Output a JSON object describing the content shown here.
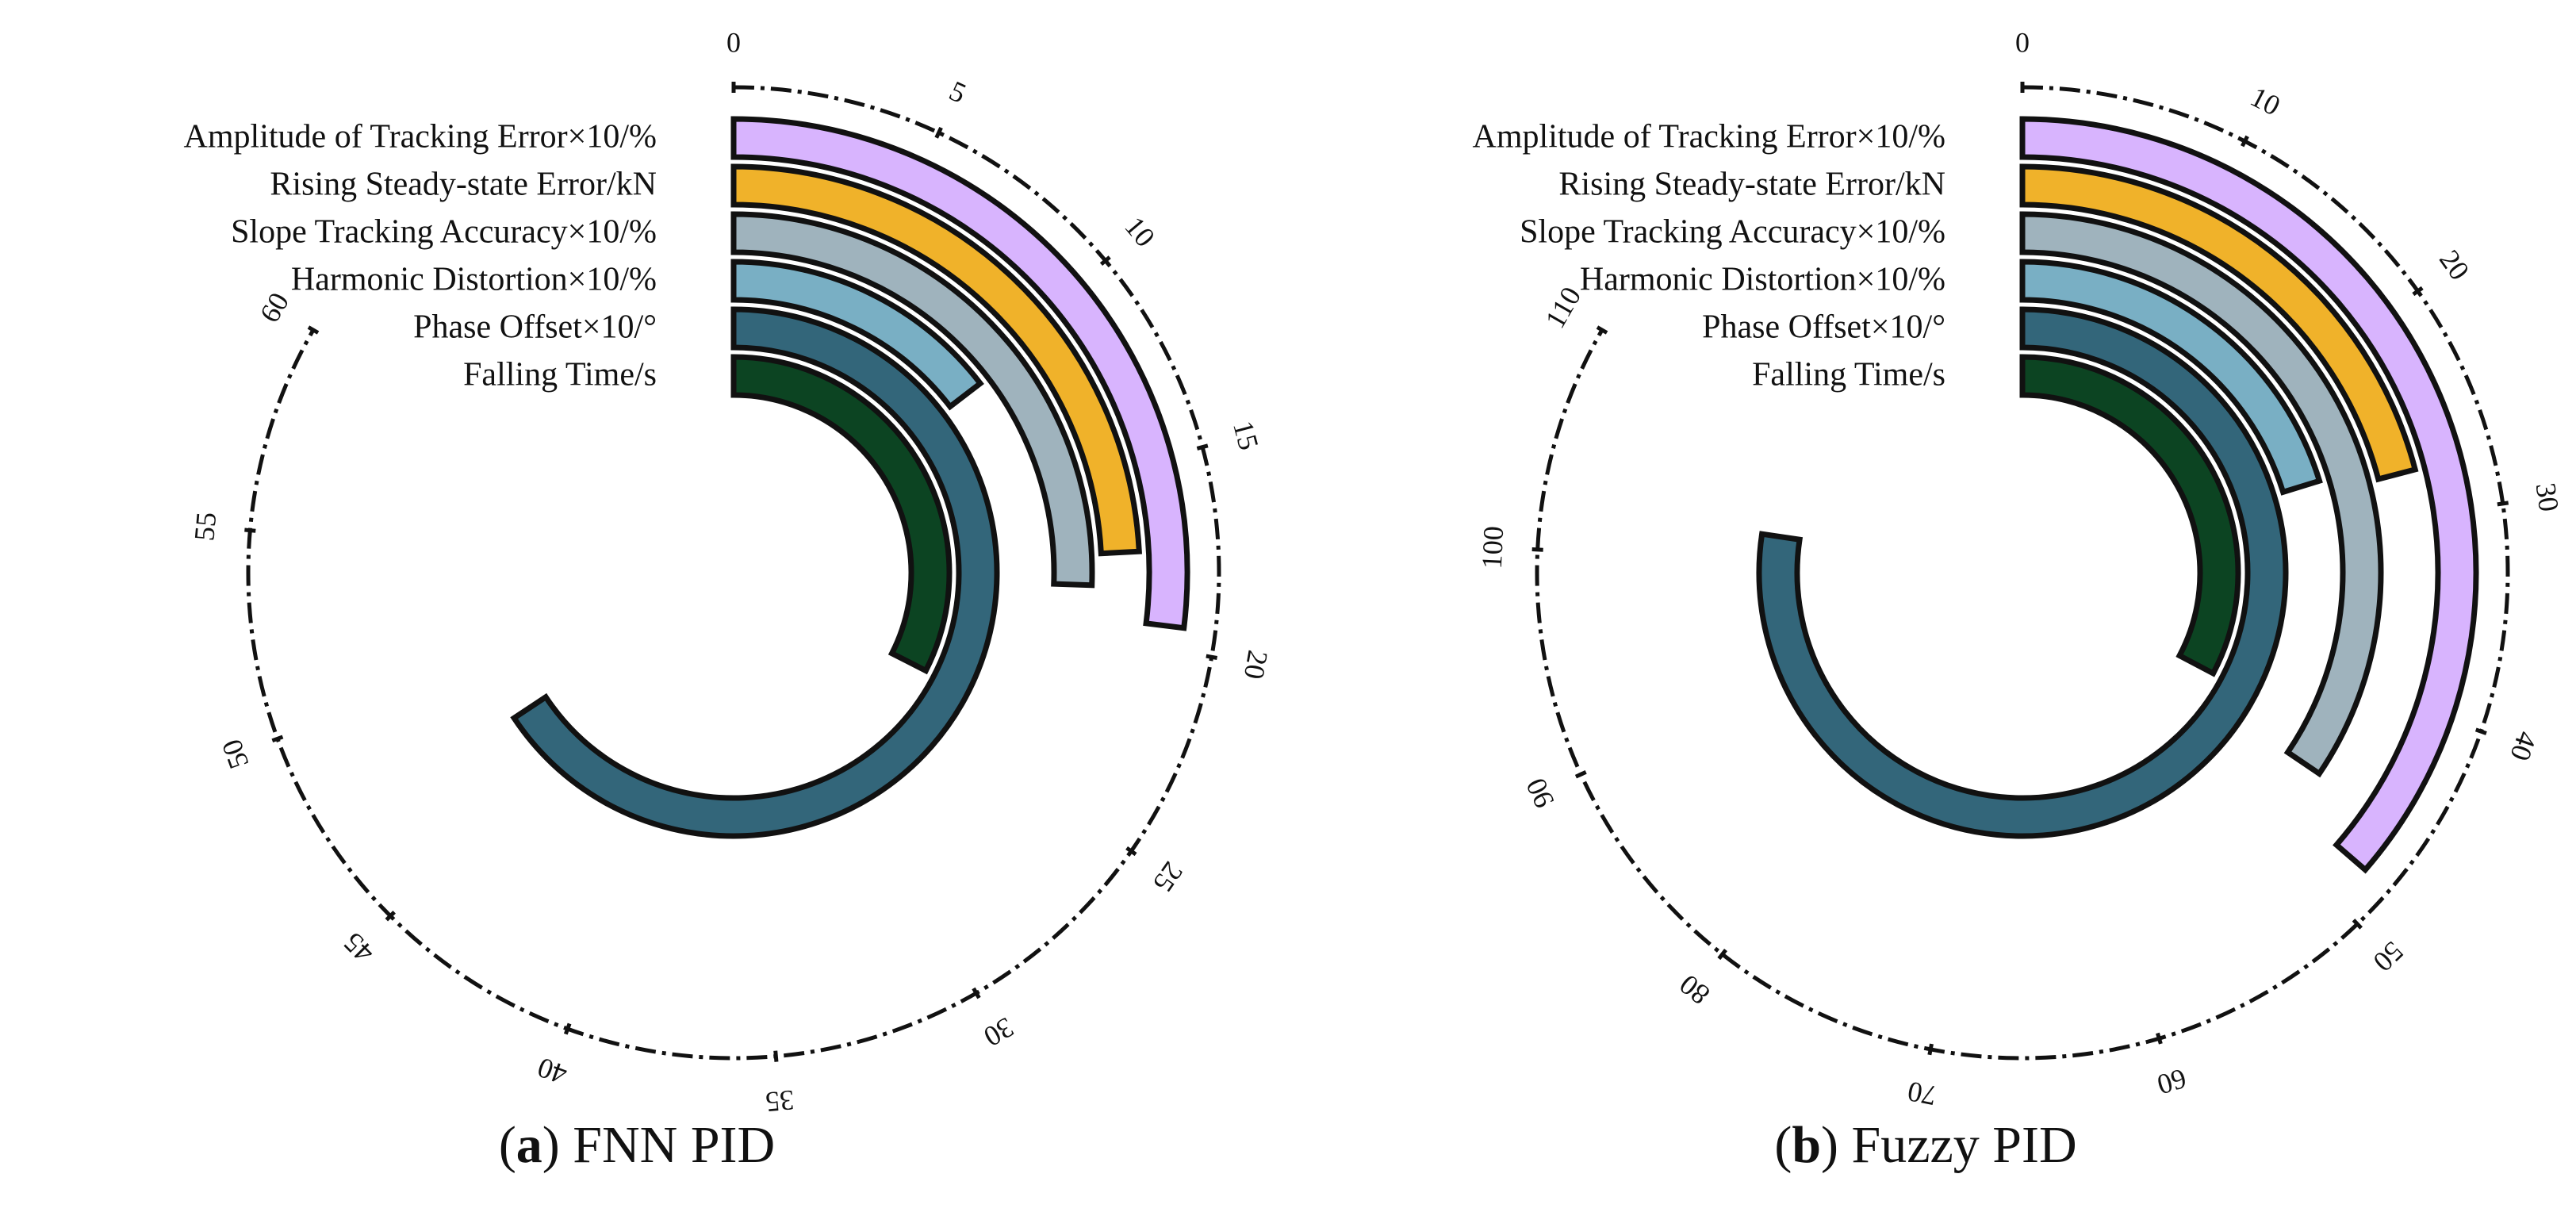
{
  "chart_data": [
    {
      "type": "radial-bar",
      "panel_letter": "a",
      "panel_title": "FNN PID",
      "axis": {
        "range": [
          0,
          60
        ],
        "ticks": [
          0,
          5,
          10,
          15,
          20,
          25,
          30,
          35,
          40,
          45,
          50,
          55,
          60
        ]
      },
      "series": [
        {
          "name": "Amplitude of Tracking Error×10/%",
          "value": 19.4,
          "color": "#d8b4fe"
        },
        {
          "name": "Rising Steady-state Error/kN",
          "value": 17.4,
          "color": "#f0b22a"
        },
        {
          "name": "Slope Tracking Accuracy×10/%",
          "value": 18.4,
          "color": "#9fb3bd"
        },
        {
          "name": "Harmonic Distortion×10/%",
          "value": 10.5,
          "color": "#79afc4"
        },
        {
          "name": "Phase Offset×10/°",
          "value": 47.3,
          "color": "#33667a"
        },
        {
          "name": "Falling Time/s",
          "value": 23.4,
          "color": "#0c4422"
        }
      ]
    },
    {
      "type": "radial-bar",
      "panel_letter": "b",
      "panel_title": "Fuzzy PID",
      "axis": {
        "range": [
          0,
          110
        ],
        "ticks": [
          0,
          10,
          20,
          30,
          40,
          50,
          60,
          70,
          80,
          90,
          100,
          110
        ]
      },
      "series": [
        {
          "name": "Amplitude of Tracking Error×10/%",
          "value": 48.0,
          "color": "#d8b4fe"
        },
        {
          "name": "Rising Steady-state Error/kN",
          "value": 27.6,
          "color": "#f0b22a"
        },
        {
          "name": "Slope Tracking Accuracy×10/%",
          "value": 45.5,
          "color": "#9fb3bd"
        },
        {
          "name": "Harmonic Distortion×10/%",
          "value": 26.7,
          "color": "#79afc4"
        },
        {
          "name": "Phase Offset×10/°",
          "value": 102.1,
          "color": "#33667a"
        },
        {
          "name": "Falling Time/s",
          "value": 43.2,
          "color": "#0c4422"
        }
      ]
    }
  ]
}
